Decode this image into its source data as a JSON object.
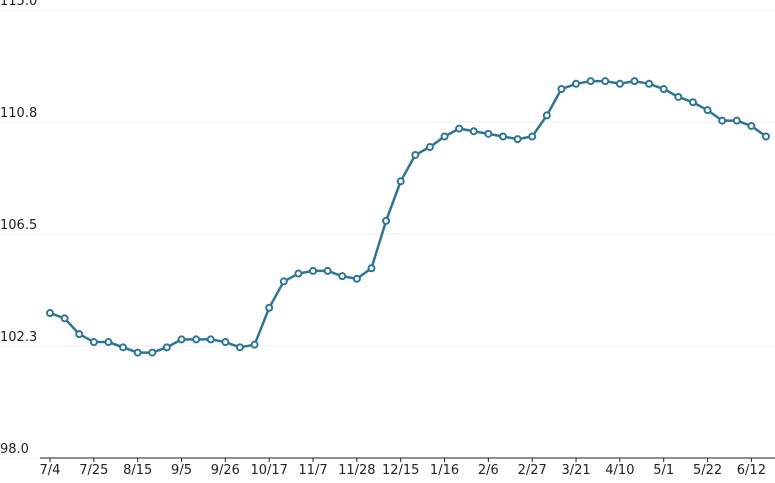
{
  "chart_data": {
    "type": "line",
    "categories": [
      "7/4",
      null,
      null,
      "7/25",
      null,
      null,
      "8/15",
      null,
      null,
      "9/5",
      null,
      null,
      "9/26",
      null,
      null,
      "10/17",
      null,
      null,
      "11/7",
      null,
      null,
      "11/28",
      null,
      null,
      "12/15",
      null,
      null,
      "1/16",
      null,
      null,
      "2/6",
      null,
      null,
      "2/27",
      null,
      null,
      "3/21",
      null,
      null,
      "4/10",
      null,
      null,
      "5/1",
      null,
      null,
      "5/22",
      null,
      null,
      "6/12",
      null
    ],
    "series": [
      {
        "color": "#2f7594",
        "values": [
          103.5,
          103.3,
          102.7,
          102.4,
          102.4,
          102.2,
          102.0,
          102.0,
          102.2,
          102.5,
          102.5,
          102.5,
          102.4,
          102.2,
          102.3,
          103.7,
          104.7,
          105.0,
          105.1,
          105.1,
          104.9,
          104.8,
          105.2,
          107.0,
          108.5,
          109.5,
          109.8,
          110.2,
          110.5,
          110.4,
          110.3,
          110.2,
          110.1,
          110.2,
          111.0,
          112.0,
          112.2,
          112.3,
          112.3,
          112.2,
          112.3,
          112.2,
          112.0,
          111.7,
          111.5,
          111.2,
          110.8,
          110.8,
          110.6,
          110.2
        ]
      }
    ],
    "ylim": [
      98,
      115
    ],
    "yticks": [
      {
        "value": 98,
        "label": "98.0"
      },
      {
        "value": 102.25,
        "label": "102.3"
      },
      106.5,
      {
        "value": 110.75,
        "label": "110.8"
      },
      {
        "value": 115,
        "label": "115.0"
      }
    ],
    "grid": true
  }
}
